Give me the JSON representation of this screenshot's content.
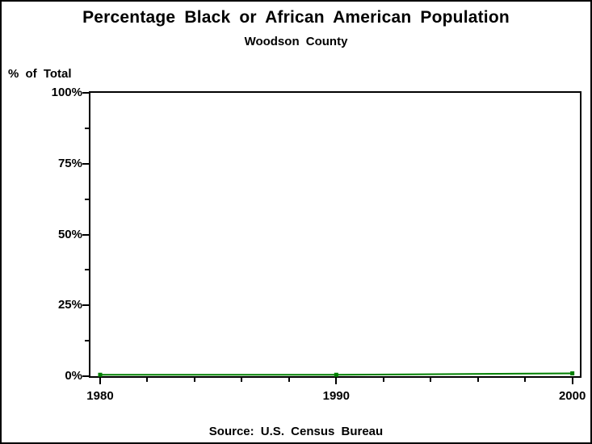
{
  "colors": {
    "line": "#008000",
    "text": "#000000",
    "background": "#ffffff",
    "frame": "#000000"
  },
  "chart_data": {
    "type": "line",
    "title": "Percentage Black or African American Population",
    "subtitle": "Woodson County",
    "ylabel": "% of Total",
    "xlabel": "",
    "source_note": "Source: U.S. Census Bureau",
    "x": [
      1980,
      1990,
      2000
    ],
    "values": [
      0.5,
      0.5,
      1.0
    ],
    "x_tick_labels": [
      "1980",
      "1990",
      "2000"
    ],
    "x_major_ticks": [
      1980,
      1990,
      2000
    ],
    "x_minor_ticks": [
      1982,
      1984,
      1986,
      1988,
      1992,
      1994,
      1996,
      1998
    ],
    "y_tick_labels": [
      "0%",
      "25%",
      "50%",
      "75%",
      "100%"
    ],
    "y_major_ticks": [
      0,
      25,
      50,
      75,
      100
    ],
    "y_minor_ticks": [
      12.5,
      37.5,
      62.5,
      87.5
    ],
    "x_range": [
      1979.59,
      2000.32
    ],
    "y_range": [
      0,
      100
    ],
    "grid": false,
    "legend": "none",
    "marker": "square",
    "marker_size": 5,
    "line_width": 2
  }
}
